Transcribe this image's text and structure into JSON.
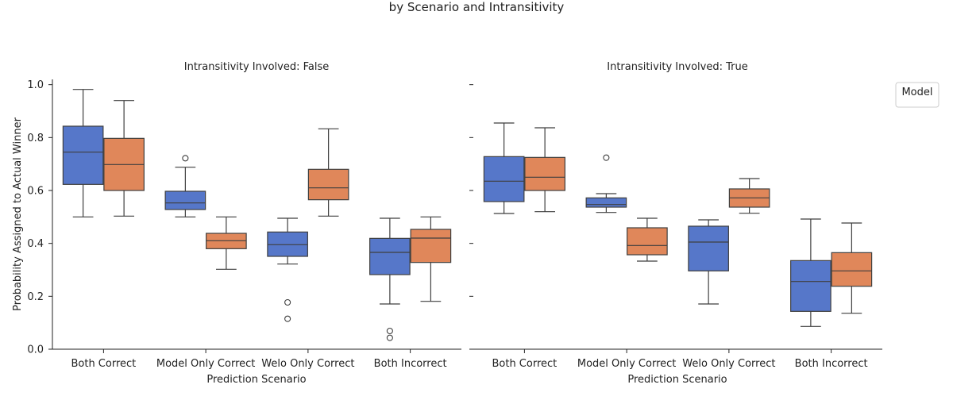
{
  "figure": {
    "title": "by Scenario and Intransitivity",
    "legend_title": "Model"
  },
  "chart_data": [
    {
      "type": "box",
      "title": "Intransitivity Involved: False",
      "xlabel": "Prediction Scenario",
      "ylabel": "Probability Assigned to Actual Winner",
      "ylim": [
        0.0,
        1.02
      ],
      "yticks": [
        0.0,
        0.2,
        0.4,
        0.6,
        0.8,
        1.0
      ],
      "ytick_labels": [
        "0.0",
        "0.2",
        "0.4",
        "0.6",
        "0.8",
        "1.0"
      ],
      "categories": [
        "Both Correct",
        "Model Only Correct",
        "Welo Only Correct",
        "Both Incorrect"
      ],
      "series": [
        {
          "color": "#5677c9",
          "boxes": [
            {
              "whislo": 0.5,
              "q1": 0.623,
              "med": 0.745,
              "q3": 0.843,
              "whishi": 0.982,
              "fliers": []
            },
            {
              "whislo": 0.5,
              "q1": 0.528,
              "med": 0.553,
              "q3": 0.597,
              "whishi": 0.688,
              "fliers": [
                0.722
              ]
            },
            {
              "whislo": 0.322,
              "q1": 0.351,
              "med": 0.395,
              "q3": 0.443,
              "whishi": 0.495,
              "fliers": [
                0.177,
                0.115
              ]
            },
            {
              "whislo": 0.171,
              "q1": 0.282,
              "med": 0.366,
              "q3": 0.419,
              "whishi": 0.495,
              "fliers": [
                0.069,
                0.043
              ]
            }
          ]
        },
        {
          "color": "#e0875a",
          "boxes": [
            {
              "whislo": 0.503,
              "q1": 0.6,
              "med": 0.698,
              "q3": 0.797,
              "whishi": 0.94,
              "fliers": []
            },
            {
              "whislo": 0.302,
              "q1": 0.38,
              "med": 0.41,
              "q3": 0.438,
              "whishi": 0.5,
              "fliers": []
            },
            {
              "whislo": 0.503,
              "q1": 0.565,
              "med": 0.61,
              "q3": 0.68,
              "whishi": 0.833,
              "fliers": []
            },
            {
              "whislo": 0.181,
              "q1": 0.328,
              "med": 0.42,
              "q3": 0.453,
              "whishi": 0.5,
              "fliers": []
            }
          ]
        }
      ]
    },
    {
      "type": "box",
      "title": "Intransitivity Involved: True",
      "xlabel": "Prediction Scenario",
      "ylabel": "",
      "ylim": [
        0.0,
        1.02
      ],
      "yticks": [
        0.0,
        0.2,
        0.4,
        0.6,
        0.8,
        1.0
      ],
      "ytick_labels": [
        "",
        "",
        "",
        "",
        "",
        ""
      ],
      "categories": [
        "Both Correct",
        "Model Only Correct",
        "Welo Only Correct",
        "Both Incorrect"
      ],
      "series": [
        {
          "color": "#5677c9",
          "boxes": [
            {
              "whislo": 0.513,
              "q1": 0.558,
              "med": 0.635,
              "q3": 0.728,
              "whishi": 0.855,
              "fliers": []
            },
            {
              "whislo": 0.517,
              "q1": 0.537,
              "med": 0.547,
              "q3": 0.572,
              "whishi": 0.588,
              "fliers": [
                0.724
              ]
            },
            {
              "whislo": 0.171,
              "q1": 0.296,
              "med": 0.405,
              "q3": 0.465,
              "whishi": 0.489,
              "fliers": []
            },
            {
              "whislo": 0.086,
              "q1": 0.143,
              "med": 0.256,
              "q3": 0.335,
              "whishi": 0.492,
              "fliers": []
            }
          ]
        },
        {
          "color": "#e0875a",
          "boxes": [
            {
              "whislo": 0.52,
              "q1": 0.6,
              "med": 0.65,
              "q3": 0.725,
              "whishi": 0.837,
              "fliers": []
            },
            {
              "whislo": 0.333,
              "q1": 0.357,
              "med": 0.392,
              "q3": 0.459,
              "whishi": 0.495,
              "fliers": []
            },
            {
              "whislo": 0.514,
              "q1": 0.537,
              "med": 0.572,
              "q3": 0.606,
              "whishi": 0.645,
              "fliers": []
            },
            {
              "whislo": 0.136,
              "q1": 0.238,
              "med": 0.296,
              "q3": 0.365,
              "whishi": 0.477,
              "fliers": []
            }
          ]
        }
      ]
    }
  ]
}
